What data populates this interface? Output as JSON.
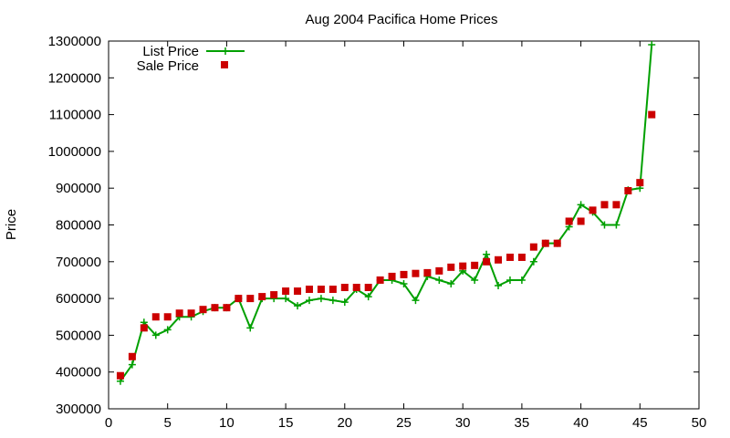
{
  "chart_data": {
    "type": "line",
    "title": "Aug 2004 Pacifica Home Prices",
    "xlabel": "",
    "ylabel": "Price",
    "xlim": [
      0,
      50
    ],
    "ylim": [
      300000,
      1300000
    ],
    "x_ticks": [
      "0",
      "5",
      "10",
      "15",
      "20",
      "25",
      "30",
      "35",
      "40",
      "45",
      "50"
    ],
    "y_ticks": [
      "300000",
      "400000",
      "500000",
      "600000",
      "700000",
      "800000",
      "900000",
      "1000000",
      "1100000",
      "1200000",
      "1300000"
    ],
    "grid": false,
    "legend_position": "top-left",
    "x": [
      1,
      2,
      3,
      4,
      5,
      6,
      7,
      8,
      9,
      10,
      11,
      12,
      13,
      14,
      15,
      16,
      17,
      18,
      19,
      20,
      21,
      22,
      23,
      24,
      25,
      26,
      27,
      28,
      29,
      30,
      31,
      32,
      33,
      34,
      35,
      36,
      37,
      38,
      39,
      40,
      41,
      42,
      43,
      44,
      45,
      46
    ],
    "series": [
      {
        "name": "List Price",
        "style": "line-with-plus",
        "color": "#00a000",
        "values": [
          375000,
          420000,
          535000,
          500000,
          515000,
          550000,
          550000,
          565000,
          575000,
          575000,
          600000,
          520000,
          600000,
          600000,
          600000,
          580000,
          595000,
          600000,
          595000,
          590000,
          625000,
          605000,
          650000,
          650000,
          640000,
          595000,
          660000,
          650000,
          640000,
          675000,
          650000,
          720000,
          635000,
          650000,
          650000,
          700000,
          750000,
          750000,
          795000,
          855000,
          835000,
          800000,
          800000,
          895000,
          900000,
          1290000
        ]
      },
      {
        "name": "Sale Price",
        "style": "square-points",
        "color": "#cc0000",
        "values": [
          390000,
          442000,
          520000,
          550000,
          550000,
          560000,
          560000,
          570000,
          575000,
          575000,
          600000,
          600000,
          605000,
          610000,
          620000,
          620000,
          625000,
          625000,
          625000,
          630000,
          630000,
          630000,
          650000,
          660000,
          665000,
          668000,
          670000,
          675000,
          685000,
          688000,
          690000,
          700000,
          705000,
          712000,
          712000,
          740000,
          750000,
          750000,
          810000,
          810000,
          840000,
          855000,
          855000,
          893000,
          915000,
          1100000
        ]
      }
    ]
  }
}
